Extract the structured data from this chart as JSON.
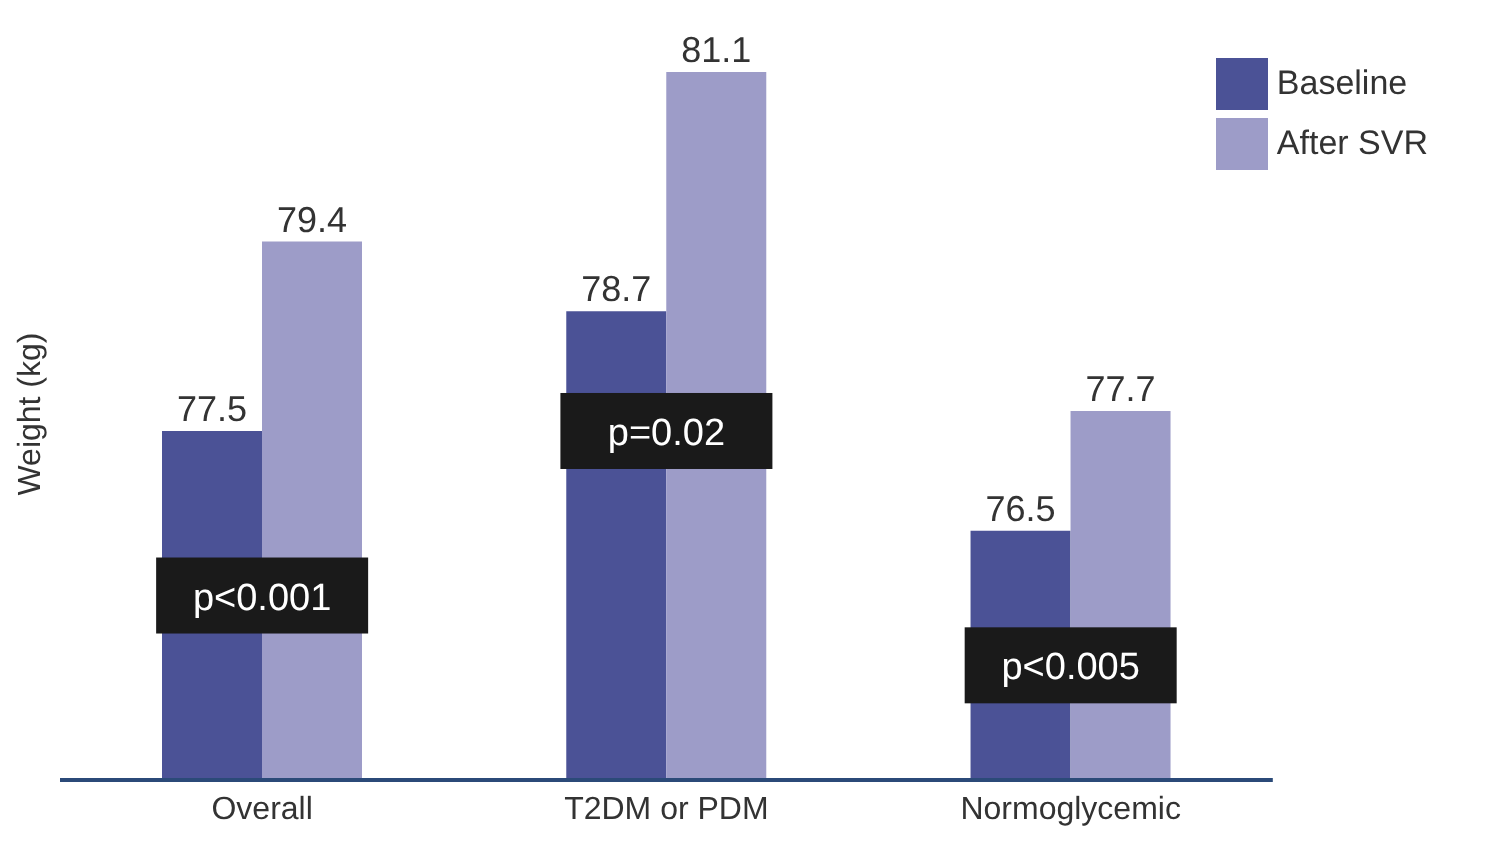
{
  "chart_data": {
    "type": "bar",
    "ylabel": "Weight (kg)",
    "categories": [
      "Overall",
      "T2DM or PDM",
      "Normoglycemic"
    ],
    "series": [
      {
        "name": "Baseline",
        "color": "#4b5296",
        "values": [
          77.5,
          78.7,
          76.5
        ]
      },
      {
        "name": "After SVR",
        "color": "#9d9cc8",
        "values": [
          79.4,
          81.1,
          77.7
        ]
      }
    ],
    "ylim": [
      74,
      81.1
    ],
    "data_labels": true,
    "legend": "top right",
    "grid": false,
    "annotations": [
      {
        "text": "p<0.001",
        "x": "Overall",
        "y": 75.85
      },
      {
        "text": "p=0.02",
        "x": "T2DM or PDM",
        "y": 77.5
      },
      {
        "text": "p<0.005",
        "x": "Normoglycemic",
        "y": 75.15
      }
    ]
  }
}
